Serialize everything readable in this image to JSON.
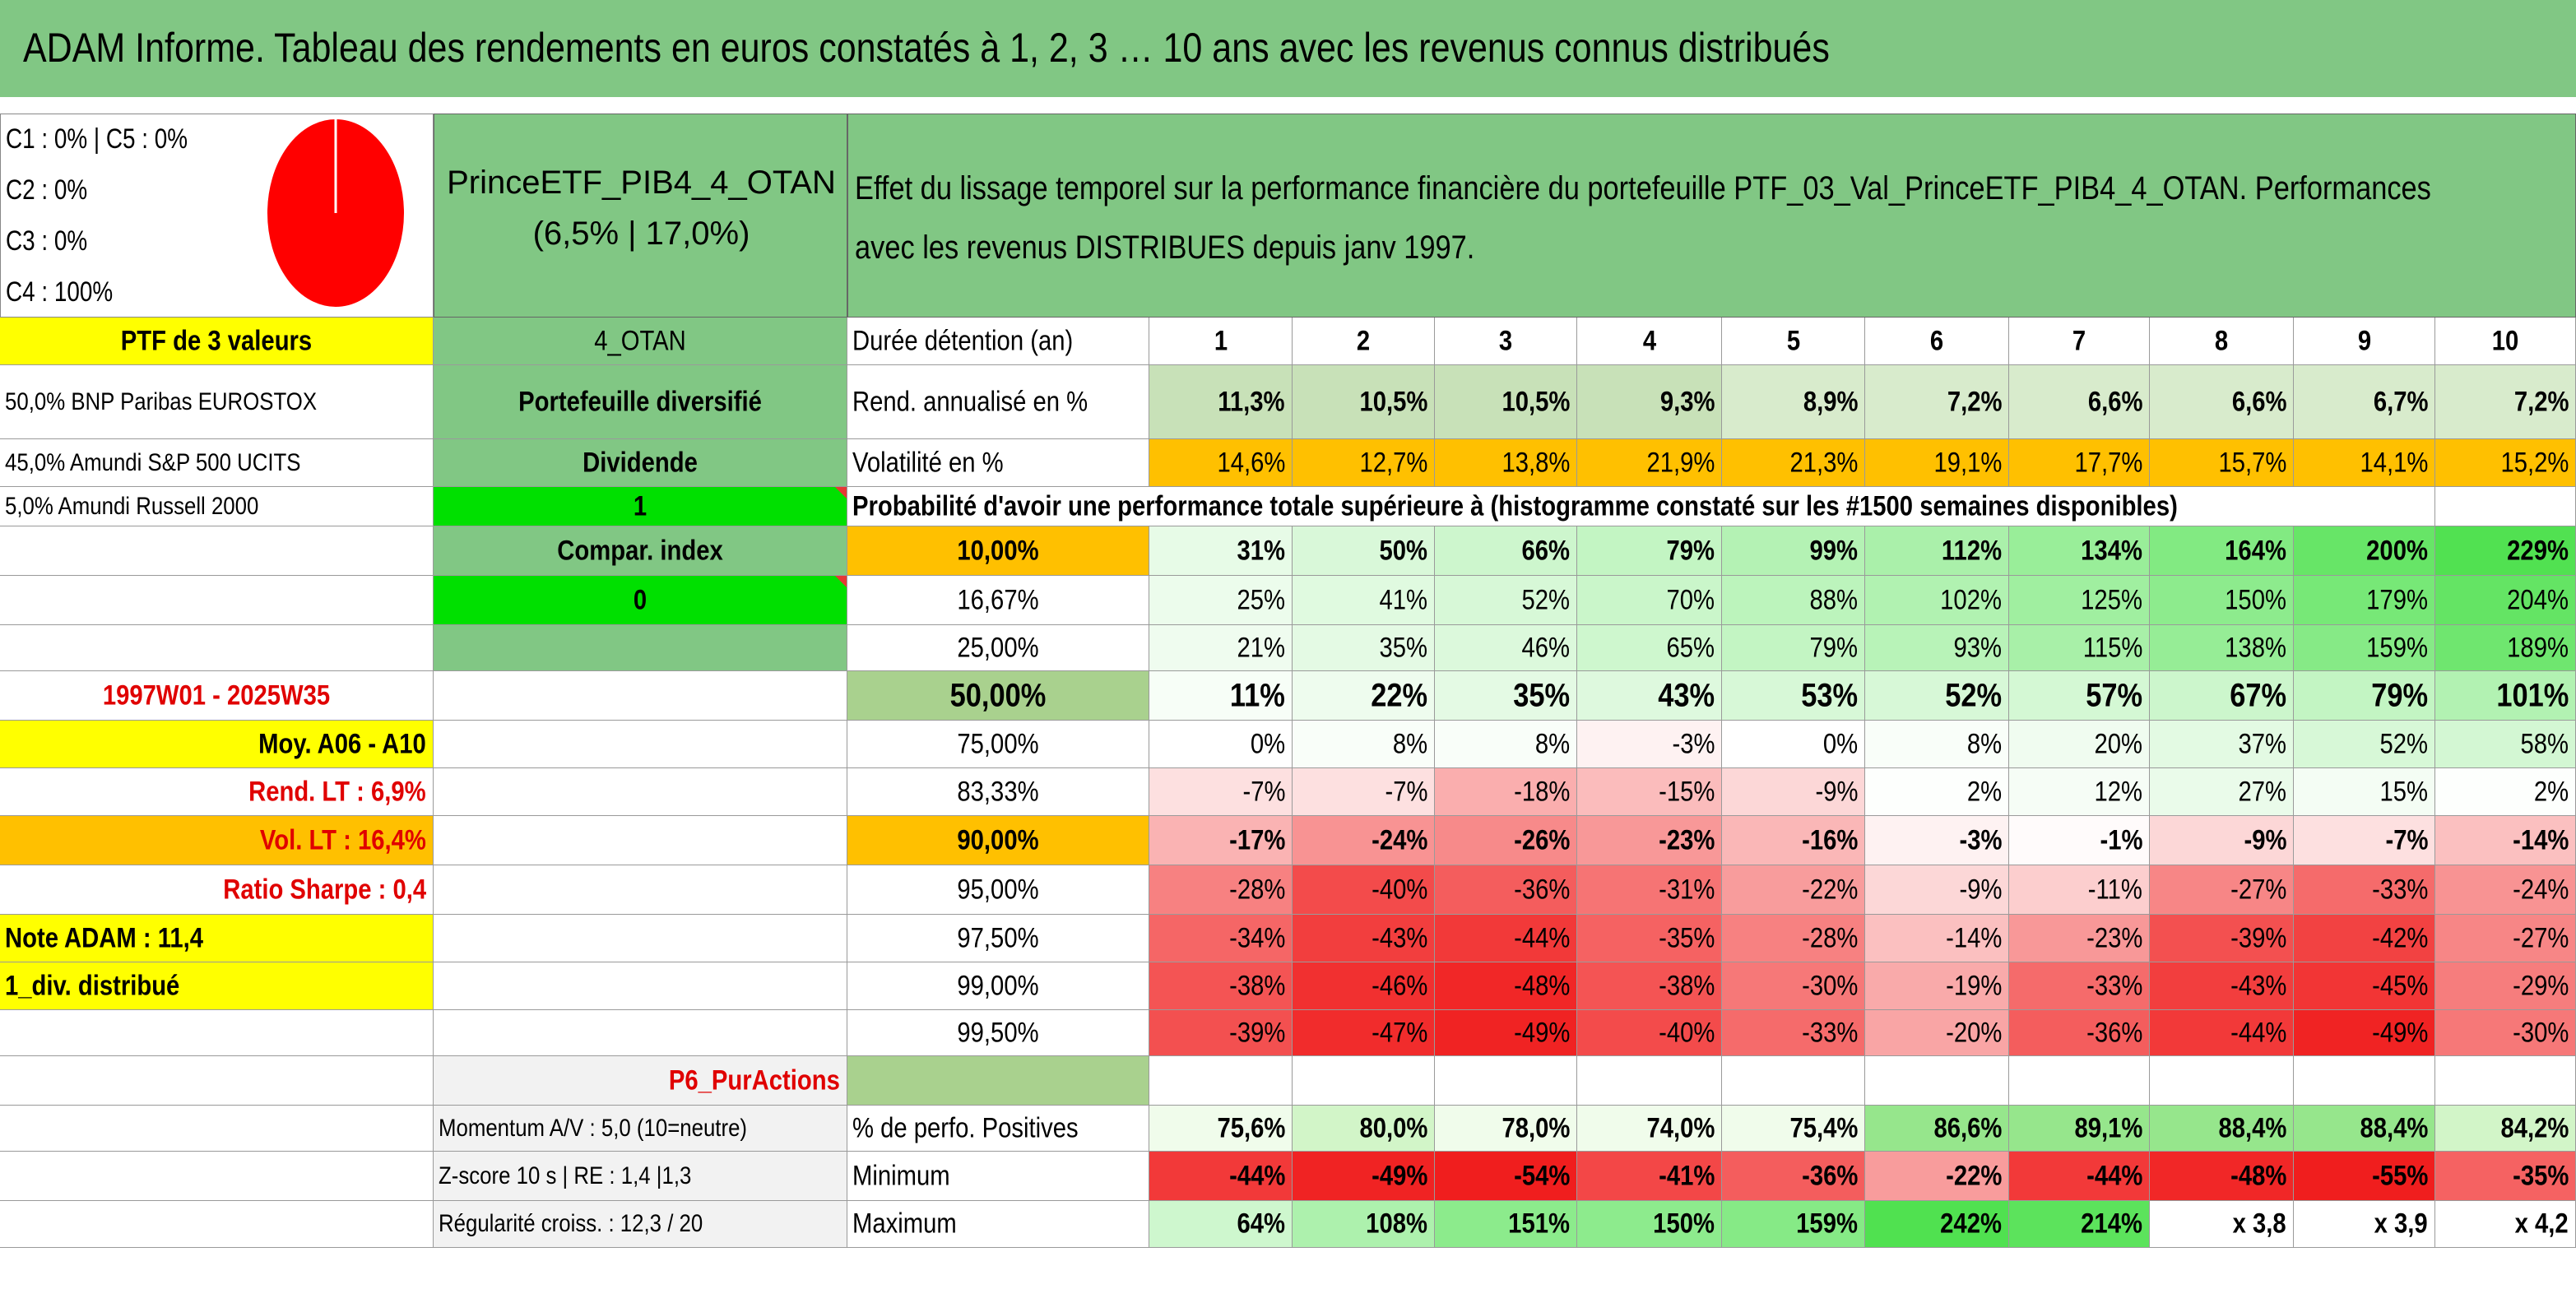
{
  "title": "ADAM Informe. Tableau des rendements en euros constatés à 1, 2, 3 … 10 ans avec les revenus connus distribués",
  "allocation": {
    "lines": [
      "C1 : 0% | C5 : 0%",
      "C2 : 0%",
      "C3 : 0%",
      "C4 : 100%"
    ],
    "pie": {
      "C4": 100,
      "color": "#ff0000"
    }
  },
  "portfolio": {
    "name": "PrinceETF_PIB4_4_OTAN",
    "stats": "(6,5% | 17,0%)"
  },
  "description": {
    "line1": "Effet du lissage temporel sur la performance financière du portefeuille PTF_03_Val_PrinceETF_PIB4_4_OTAN. Performances",
    "line2": "avec les revenus DISTRIBUES depuis janv 1997."
  },
  "left_col": {
    "r0": "PTF de 3 valeurs",
    "r1": "50,0% BNP Paribas EUROSTOX",
    "r2": "45,0% Amundi S&P 500 UCITS",
    "r3": "5,0% Amundi Russell 2000",
    "r7": "1997W01 - 2025W35",
    "r8": "Moy. A06 - A10",
    "r9": "Rend. LT : 6,9%",
    "r10": "Vol. LT : 16,4%",
    "r11": "Ratio Sharpe : 0,4",
    "r12": "Note ADAM : 11,4",
    "r13": "1_div. distribué"
  },
  "mid_col": {
    "r0": "4_OTAN",
    "r1": "Portefeuille diversifié",
    "r2": "Dividende",
    "r3": "1",
    "r4": "Compar. index",
    "r5": "0",
    "r15": "P6_PurActions",
    "r16": "Momentum A/V : 5,0 (10=neutre)",
    "r17": "Z-score 10 s | RE : 1,4 |1,3",
    "r18": "Régularité croiss. : 12,3 / 20"
  },
  "table": {
    "duration_label": "Durée détention (an)",
    "years": [
      "1",
      "2",
      "3",
      "4",
      "5",
      "6",
      "7",
      "8",
      "9",
      "10"
    ],
    "rend_label": "Rend. annualisé en %",
    "rend": [
      "11,3%",
      "10,5%",
      "10,5%",
      "9,3%",
      "8,9%",
      "7,2%",
      "6,6%",
      "6,6%",
      "6,7%",
      "7,2%"
    ],
    "vol_label": "Volatilité en %",
    "vol": [
      "14,6%",
      "12,7%",
      "13,8%",
      "21,9%",
      "21,3%",
      "19,1%",
      "17,7%",
      "15,7%",
      "14,1%",
      "15,2%"
    ],
    "prob_label": "Probabilité d'avoir une performance totale supérieure à (histogramme constaté sur les #1500 semaines disponibles)",
    "quantiles": [
      {
        "label": "10,00%",
        "values": [
          "31%",
          "50%",
          "66%",
          "79%",
          "99%",
          "112%",
          "134%",
          "164%",
          "200%",
          "229%"
        ]
      },
      {
        "label": "16,67%",
        "values": [
          "25%",
          "41%",
          "52%",
          "70%",
          "88%",
          "102%",
          "125%",
          "150%",
          "179%",
          "204%"
        ]
      },
      {
        "label": "25,00%",
        "values": [
          "21%",
          "35%",
          "46%",
          "65%",
          "79%",
          "93%",
          "115%",
          "138%",
          "159%",
          "189%"
        ]
      },
      {
        "label": "50,00%",
        "values": [
          "11%",
          "22%",
          "35%",
          "43%",
          "53%",
          "52%",
          "57%",
          "67%",
          "79%",
          "101%"
        ]
      },
      {
        "label": "75,00%",
        "values": [
          "0%",
          "8%",
          "8%",
          "-3%",
          "0%",
          "8%",
          "20%",
          "37%",
          "52%",
          "58%"
        ]
      },
      {
        "label": "83,33%",
        "values": [
          "-7%",
          "-7%",
          "-18%",
          "-15%",
          "-9%",
          "2%",
          "12%",
          "27%",
          "15%",
          "2%"
        ]
      },
      {
        "label": "90,00%",
        "values": [
          "-17%",
          "-24%",
          "-26%",
          "-23%",
          "-16%",
          "-3%",
          "-1%",
          "-9%",
          "-7%",
          "-14%"
        ]
      },
      {
        "label": "95,00%",
        "values": [
          "-28%",
          "-40%",
          "-36%",
          "-31%",
          "-22%",
          "-9%",
          "-11%",
          "-27%",
          "-33%",
          "-24%"
        ]
      },
      {
        "label": "97,50%",
        "values": [
          "-34%",
          "-43%",
          "-44%",
          "-35%",
          "-28%",
          "-14%",
          "-23%",
          "-39%",
          "-42%",
          "-27%"
        ]
      },
      {
        "label": "99,00%",
        "values": [
          "-38%",
          "-46%",
          "-48%",
          "-38%",
          "-30%",
          "-19%",
          "-33%",
          "-43%",
          "-45%",
          "-29%"
        ]
      },
      {
        "label": "99,50%",
        "values": [
          "-39%",
          "-47%",
          "-49%",
          "-40%",
          "-33%",
          "-20%",
          "-36%",
          "-44%",
          "-49%",
          "-30%"
        ]
      }
    ],
    "pos_label": "% de perfo. Positives",
    "pos": [
      "75,6%",
      "80,0%",
      "78,0%",
      "74,0%",
      "75,4%",
      "86,6%",
      "89,1%",
      "88,4%",
      "88,4%",
      "84,2%"
    ],
    "min_label": "Minimum",
    "min": [
      "-44%",
      "-49%",
      "-54%",
      "-41%",
      "-36%",
      "-22%",
      "-44%",
      "-48%",
      "-55%",
      "-35%"
    ],
    "max_label": "Maximum",
    "max": [
      "64%",
      "108%",
      "151%",
      "150%",
      "159%",
      "242%",
      "214%",
      "x 3,8",
      "x 3,9",
      "x 4,2"
    ]
  },
  "colors": {
    "header_green": "#81c784",
    "yellow": "#ffff00",
    "bright_green": "#00e000",
    "orange": "#ffc000",
    "light_grey": "#f2f2f2",
    "olive_green": "#a9d18e"
  }
}
